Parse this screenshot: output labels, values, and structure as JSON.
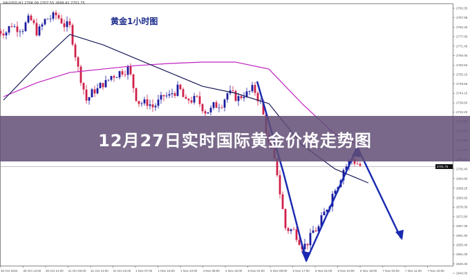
{
  "banner_title": "12月27日实时国际黄金价格走势图",
  "chart_data": {
    "type": "candlestick",
    "title": "黄金1小时图",
    "header": "XAUUSD,H1  2706.09 2707.55 2699.41 2701.75",
    "current_price": "2701.75",
    "ylim": [
      2640.05,
      2793.35
    ],
    "y_ticks": [
      "2793.35",
      "2787.88",
      "2782.40",
      "2777.00",
      "2771.45",
      "2766.05",
      "2760.50",
      "2755.10",
      "2749.65",
      "2744.15",
      "2738.60",
      "2733.20",
      "2727.80",
      "2722.30",
      "2716.90",
      "2711.35",
      "2705.90",
      "2700.40",
      "2694.80",
      "2689.25",
      "2683.65",
      "2678.30",
      "2672.80",
      "2667.35",
      "2661.90",
      "2656.40",
      "2651.00",
      "2645.45",
      "2640.05"
    ],
    "x_ticks": [
      "30 Oct 2024",
      "30 Oct 13:00",
      "30 Oct 21:00",
      "31 Oct 06:00",
      "31 Oct 14:00",
      "31 Oct 22:00",
      "1 Nov 07:00",
      "1 Nov 15:00",
      "1 Nov 23:00",
      "4 Nov 08:00",
      "4 Nov 16:00",
      "5 Nov 01:00",
      "5 Nov 09:00",
      "5 Nov 17:00",
      "6 Nov 01:00",
      "6 Nov 10:00",
      "6 Nov 18:00",
      "7 Nov 03:00",
      "7 Nov 11:00",
      "7 Nov 19:00"
    ],
    "close": [
      2780.2,
      2784.2,
      2782.2,
      2786.2,
      2780.2,
      2786.2,
      2788.2,
      2786.2,
      2782.2,
      2758.2,
      2740.2,
      2746.2,
      2750.2,
      2754.2,
      2756.2,
      2758.2,
      2742.2,
      2738.2,
      2736.3,
      2740.2,
      2742.2,
      2746.2,
      2738.2,
      2740.2,
      2736.3,
      2734.3,
      2738.2,
      2744.2,
      2742.2,
      2744.2,
      2746.2,
      2738.2,
      2714.3,
      2698.3,
      2666.4,
      2664.4,
      2656.4,
      2660.4,
      2666.4,
      2678.3,
      2690.3,
      2700.3,
      2706.3,
      2702.3
    ],
    "ma_fast": [
      2740.2,
      2760.2,
      2778.2,
      2772.2,
      2764.2,
      2756.2,
      2748.2,
      2744.2,
      2738.2,
      2714.3,
      2700.3,
      2692.3
    ],
    "ma_slow": [
      2742.2,
      2750.2,
      2756.2,
      2758.2,
      2760.2,
      2761.4,
      2762.2,
      2762.2,
      2758.2,
      2738.2,
      2720.3,
      2712.3
    ],
    "colors": {
      "bull": "#1a1aa0",
      "bear": "#d0204a",
      "ma_fast": "#1a1a5a",
      "ma_slow": "#c020c0",
      "arrow": "#1a2ab0"
    }
  }
}
